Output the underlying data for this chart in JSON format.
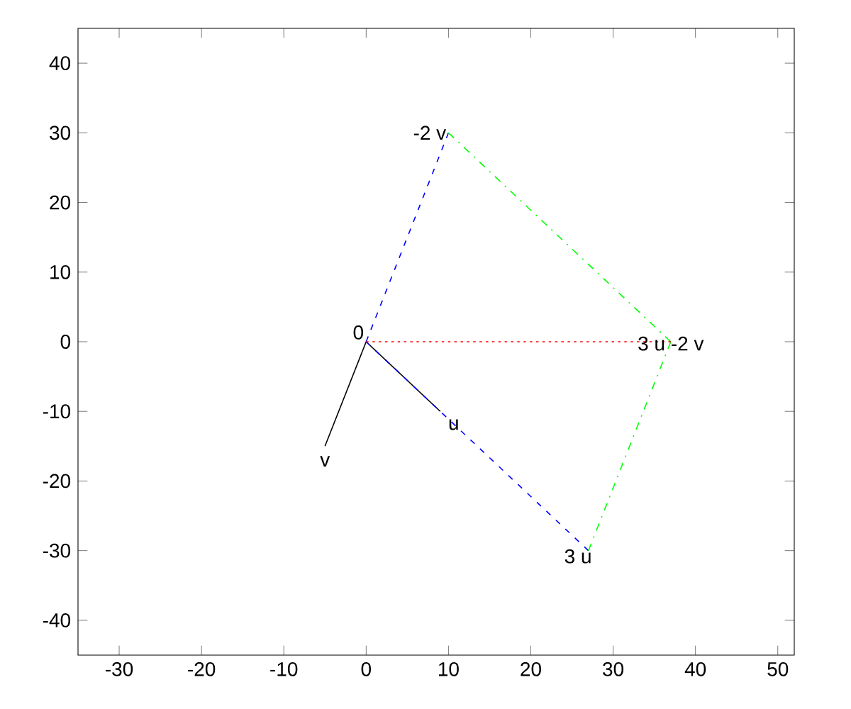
{
  "chart_data": {
    "type": "line",
    "xlim": [
      -35,
      52
    ],
    "ylim": [
      -45,
      45
    ],
    "xticks": [
      -30,
      -20,
      -10,
      0,
      10,
      20,
      30,
      40,
      50
    ],
    "yticks": [
      -40,
      -30,
      -20,
      -10,
      0,
      10,
      20,
      30,
      40
    ],
    "grid": false,
    "marker": "none",
    "series": [
      {
        "x": [
          0,
          9
        ],
        "values": [
          0,
          -10
        ],
        "color": "#000000",
        "line_style": "solid"
      },
      {
        "x": [
          0,
          -5
        ],
        "values": [
          0,
          -15
        ],
        "color": "#000000",
        "line_style": "solid"
      },
      {
        "x": [
          0,
          27
        ],
        "values": [
          0,
          -30
        ],
        "color": "#0000ff",
        "line_style": "dashed"
      },
      {
        "x": [
          0,
          10
        ],
        "values": [
          0,
          30
        ],
        "color": "#0000ff",
        "line_style": "dashed"
      },
      {
        "x": [
          10,
          37
        ],
        "values": [
          30,
          0
        ],
        "color": "#00ff00",
        "line_style": "dashdot"
      },
      {
        "x": [
          27,
          37
        ],
        "values": [
          -30,
          0
        ],
        "color": "#00ff00",
        "line_style": "dashdot"
      },
      {
        "x": [
          0,
          37
        ],
        "values": [
          0,
          0
        ],
        "color": "#ff0000",
        "line_style": "dotted"
      }
    ],
    "annotations": [
      {
        "text": "0",
        "x": 0,
        "y": 0
      },
      {
        "text": "u",
        "x": 9,
        "y": -10
      },
      {
        "text": "v",
        "x": -5,
        "y": -15
      },
      {
        "text": "3 u",
        "x": 27,
        "y": -30
      },
      {
        "text": "-2 v",
        "x": 10,
        "y": 30
      },
      {
        "text": "3 u -2 v",
        "x": 37,
        "y": 0
      }
    ]
  }
}
